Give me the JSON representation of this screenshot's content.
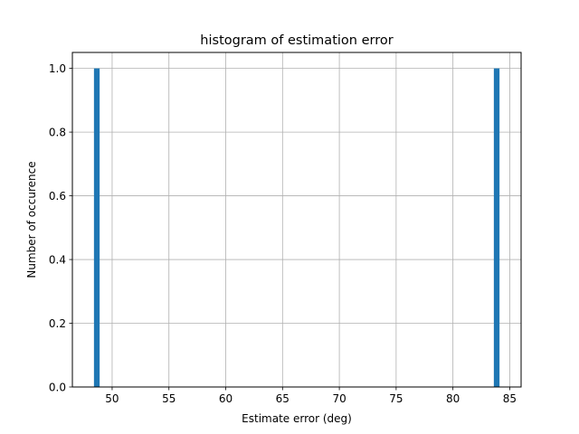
{
  "chart_data": {
    "type": "bar",
    "title": "histogram of estimation error",
    "xlabel": "Estimate error (deg)",
    "ylabel": "Number of occurence",
    "xlim": [
      46.5,
      86
    ],
    "ylim": [
      0,
      1.05
    ],
    "xticks": [
      50,
      55,
      60,
      65,
      70,
      75,
      80,
      85
    ],
    "yticks": [
      0.0,
      0.2,
      0.4,
      0.6,
      0.8,
      1.0
    ],
    "ytick_labels": [
      "0.0",
      "0.2",
      "0.4",
      "0.6",
      "0.8",
      "1.0"
    ],
    "bars": [
      {
        "x_start": 48.4,
        "x_end": 48.9,
        "count": 1
      },
      {
        "x_start": 83.6,
        "x_end": 84.1,
        "count": 1
      }
    ],
    "grid": true,
    "bar_color": "#1f77b4"
  }
}
